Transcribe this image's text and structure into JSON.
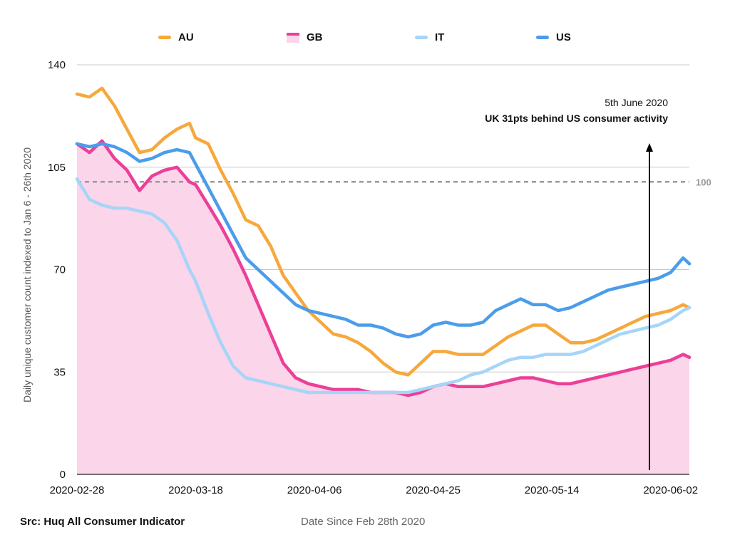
{
  "chart_data": {
    "type": "line",
    "ylabel": "Daily unique customer count indexed to Jan 6 - 26th 2020",
    "xlabel": "Date Since Feb 28th 2020",
    "source": "Src: Huq All Consumer Indicator",
    "ylim": [
      0,
      140
    ],
    "yticks": [
      "0",
      "35",
      "70",
      "105",
      "140"
    ],
    "x_tick_labels": [
      "2020-02-28",
      "2020-03-18",
      "2020-04-06",
      "2020-04-25",
      "2020-05-14",
      "2020-06-02"
    ],
    "x_start": "2020-02-28",
    "x_end": "2020-06-05",
    "reference_line": {
      "value": 100,
      "label": "100"
    },
    "annotation": {
      "date": "2020-06-05",
      "line1": "5th June 2020",
      "line2": "UK 31pts behind US consumer activity"
    },
    "legend_placement": "top",
    "grid": "horizontal",
    "series": [
      {
        "name": "AU",
        "color": "#F7A83B",
        "points": [
          [
            "2020-02-28",
            130
          ],
          [
            "2020-03-01",
            129
          ],
          [
            "2020-03-03",
            132
          ],
          [
            "2020-03-05",
            126
          ],
          [
            "2020-03-07",
            118
          ],
          [
            "2020-03-09",
            110
          ],
          [
            "2020-03-11",
            111
          ],
          [
            "2020-03-13",
            115
          ],
          [
            "2020-03-15",
            118
          ],
          [
            "2020-03-17",
            120
          ],
          [
            "2020-03-18",
            115
          ],
          [
            "2020-03-20",
            113
          ],
          [
            "2020-03-22",
            104
          ],
          [
            "2020-03-24",
            96
          ],
          [
            "2020-03-26",
            87
          ],
          [
            "2020-03-28",
            85
          ],
          [
            "2020-03-30",
            78
          ],
          [
            "2020-04-01",
            68
          ],
          [
            "2020-04-03",
            62
          ],
          [
            "2020-04-05",
            56
          ],
          [
            "2020-04-07",
            52
          ],
          [
            "2020-04-09",
            48
          ],
          [
            "2020-04-11",
            47
          ],
          [
            "2020-04-13",
            45
          ],
          [
            "2020-04-15",
            42
          ],
          [
            "2020-04-17",
            38
          ],
          [
            "2020-04-19",
            35
          ],
          [
            "2020-04-21",
            34
          ],
          [
            "2020-04-23",
            38
          ],
          [
            "2020-04-25",
            42
          ],
          [
            "2020-04-27",
            42
          ],
          [
            "2020-04-29",
            41
          ],
          [
            "2020-05-01",
            41
          ],
          [
            "2020-05-03",
            41
          ],
          [
            "2020-05-05",
            44
          ],
          [
            "2020-05-07",
            47
          ],
          [
            "2020-05-09",
            49
          ],
          [
            "2020-05-11",
            51
          ],
          [
            "2020-05-13",
            51
          ],
          [
            "2020-05-15",
            48
          ],
          [
            "2020-05-17",
            45
          ],
          [
            "2020-05-19",
            45
          ],
          [
            "2020-05-21",
            46
          ],
          [
            "2020-05-23",
            48
          ],
          [
            "2020-05-25",
            50
          ],
          [
            "2020-05-27",
            52
          ],
          [
            "2020-05-29",
            54
          ],
          [
            "2020-05-31",
            55
          ],
          [
            "2020-06-02",
            56
          ],
          [
            "2020-06-04",
            58
          ],
          [
            "2020-06-05",
            57
          ]
        ]
      },
      {
        "name": "GB",
        "color": "#EC3F97",
        "fill": "#FBD5EA",
        "points": [
          [
            "2020-02-28",
            113
          ],
          [
            "2020-03-01",
            110
          ],
          [
            "2020-03-03",
            114
          ],
          [
            "2020-03-05",
            108
          ],
          [
            "2020-03-07",
            104
          ],
          [
            "2020-03-09",
            97
          ],
          [
            "2020-03-11",
            102
          ],
          [
            "2020-03-13",
            104
          ],
          [
            "2020-03-15",
            105
          ],
          [
            "2020-03-17",
            100
          ],
          [
            "2020-03-18",
            99
          ],
          [
            "2020-03-20",
            92
          ],
          [
            "2020-03-22",
            85
          ],
          [
            "2020-03-24",
            77
          ],
          [
            "2020-03-26",
            68
          ],
          [
            "2020-03-28",
            58
          ],
          [
            "2020-03-30",
            48
          ],
          [
            "2020-04-01",
            38
          ],
          [
            "2020-04-03",
            33
          ],
          [
            "2020-04-05",
            31
          ],
          [
            "2020-04-07",
            30
          ],
          [
            "2020-04-09",
            29
          ],
          [
            "2020-04-11",
            29
          ],
          [
            "2020-04-13",
            29
          ],
          [
            "2020-04-15",
            28
          ],
          [
            "2020-04-17",
            28
          ],
          [
            "2020-04-19",
            28
          ],
          [
            "2020-04-21",
            27
          ],
          [
            "2020-04-23",
            28
          ],
          [
            "2020-04-25",
            30
          ],
          [
            "2020-04-27",
            31
          ],
          [
            "2020-04-29",
            30
          ],
          [
            "2020-05-01",
            30
          ],
          [
            "2020-05-03",
            30
          ],
          [
            "2020-05-05",
            31
          ],
          [
            "2020-05-07",
            32
          ],
          [
            "2020-05-09",
            33
          ],
          [
            "2020-05-11",
            33
          ],
          [
            "2020-05-13",
            32
          ],
          [
            "2020-05-15",
            31
          ],
          [
            "2020-05-17",
            31
          ],
          [
            "2020-05-19",
            32
          ],
          [
            "2020-05-21",
            33
          ],
          [
            "2020-05-23",
            34
          ],
          [
            "2020-05-25",
            35
          ],
          [
            "2020-05-27",
            36
          ],
          [
            "2020-05-29",
            37
          ],
          [
            "2020-05-31",
            38
          ],
          [
            "2020-06-02",
            39
          ],
          [
            "2020-06-04",
            41
          ],
          [
            "2020-06-05",
            40
          ]
        ]
      },
      {
        "name": "IT",
        "color": "#A6D5F7",
        "points": [
          [
            "2020-02-28",
            101
          ],
          [
            "2020-03-01",
            94
          ],
          [
            "2020-03-03",
            92
          ],
          [
            "2020-03-05",
            91
          ],
          [
            "2020-03-07",
            91
          ],
          [
            "2020-03-09",
            90
          ],
          [
            "2020-03-11",
            89
          ],
          [
            "2020-03-13",
            86
          ],
          [
            "2020-03-15",
            80
          ],
          [
            "2020-03-17",
            70
          ],
          [
            "2020-03-18",
            66
          ],
          [
            "2020-03-20",
            55
          ],
          [
            "2020-03-22",
            45
          ],
          [
            "2020-03-24",
            37
          ],
          [
            "2020-03-26",
            33
          ],
          [
            "2020-03-28",
            32
          ],
          [
            "2020-03-30",
            31
          ],
          [
            "2020-04-01",
            30
          ],
          [
            "2020-04-03",
            29
          ],
          [
            "2020-04-05",
            28
          ],
          [
            "2020-04-07",
            28
          ],
          [
            "2020-04-09",
            28
          ],
          [
            "2020-04-11",
            28
          ],
          [
            "2020-04-13",
            28
          ],
          [
            "2020-04-15",
            28
          ],
          [
            "2020-04-17",
            28
          ],
          [
            "2020-04-19",
            28
          ],
          [
            "2020-04-21",
            28
          ],
          [
            "2020-04-23",
            29
          ],
          [
            "2020-04-25",
            30
          ],
          [
            "2020-04-27",
            31
          ],
          [
            "2020-04-29",
            32
          ],
          [
            "2020-05-01",
            34
          ],
          [
            "2020-05-03",
            35
          ],
          [
            "2020-05-05",
            37
          ],
          [
            "2020-05-07",
            39
          ],
          [
            "2020-05-09",
            40
          ],
          [
            "2020-05-11",
            40
          ],
          [
            "2020-05-13",
            41
          ],
          [
            "2020-05-15",
            41
          ],
          [
            "2020-05-17",
            41
          ],
          [
            "2020-05-19",
            42
          ],
          [
            "2020-05-21",
            44
          ],
          [
            "2020-05-23",
            46
          ],
          [
            "2020-05-25",
            48
          ],
          [
            "2020-05-27",
            49
          ],
          [
            "2020-05-29",
            50
          ],
          [
            "2020-05-31",
            51
          ],
          [
            "2020-06-02",
            53
          ],
          [
            "2020-06-04",
            56
          ],
          [
            "2020-06-05",
            57
          ]
        ]
      },
      {
        "name": "US",
        "color": "#4A9DEA",
        "points": [
          [
            "2020-02-28",
            113
          ],
          [
            "2020-03-01",
            112
          ],
          [
            "2020-03-03",
            113
          ],
          [
            "2020-03-05",
            112
          ],
          [
            "2020-03-07",
            110
          ],
          [
            "2020-03-09",
            107
          ],
          [
            "2020-03-11",
            108
          ],
          [
            "2020-03-13",
            110
          ],
          [
            "2020-03-15",
            111
          ],
          [
            "2020-03-17",
            110
          ],
          [
            "2020-03-18",
            106
          ],
          [
            "2020-03-20",
            98
          ],
          [
            "2020-03-22",
            90
          ],
          [
            "2020-03-24",
            82
          ],
          [
            "2020-03-26",
            74
          ],
          [
            "2020-03-28",
            70
          ],
          [
            "2020-03-30",
            66
          ],
          [
            "2020-04-01",
            62
          ],
          [
            "2020-04-03",
            58
          ],
          [
            "2020-04-05",
            56
          ],
          [
            "2020-04-07",
            55
          ],
          [
            "2020-04-09",
            54
          ],
          [
            "2020-04-11",
            53
          ],
          [
            "2020-04-13",
            51
          ],
          [
            "2020-04-15",
            51
          ],
          [
            "2020-04-17",
            50
          ],
          [
            "2020-04-19",
            48
          ],
          [
            "2020-04-21",
            47
          ],
          [
            "2020-04-23",
            48
          ],
          [
            "2020-04-25",
            51
          ],
          [
            "2020-04-27",
            52
          ],
          [
            "2020-04-29",
            51
          ],
          [
            "2020-05-01",
            51
          ],
          [
            "2020-05-03",
            52
          ],
          [
            "2020-05-05",
            56
          ],
          [
            "2020-05-07",
            58
          ],
          [
            "2020-05-09",
            60
          ],
          [
            "2020-05-11",
            58
          ],
          [
            "2020-05-13",
            58
          ],
          [
            "2020-05-15",
            56
          ],
          [
            "2020-05-17",
            57
          ],
          [
            "2020-05-19",
            59
          ],
          [
            "2020-05-21",
            61
          ],
          [
            "2020-05-23",
            63
          ],
          [
            "2020-05-25",
            64
          ],
          [
            "2020-05-27",
            65
          ],
          [
            "2020-05-29",
            66
          ],
          [
            "2020-05-31",
            67
          ],
          [
            "2020-06-02",
            69
          ],
          [
            "2020-06-04",
            74
          ],
          [
            "2020-06-05",
            72
          ]
        ]
      }
    ]
  }
}
